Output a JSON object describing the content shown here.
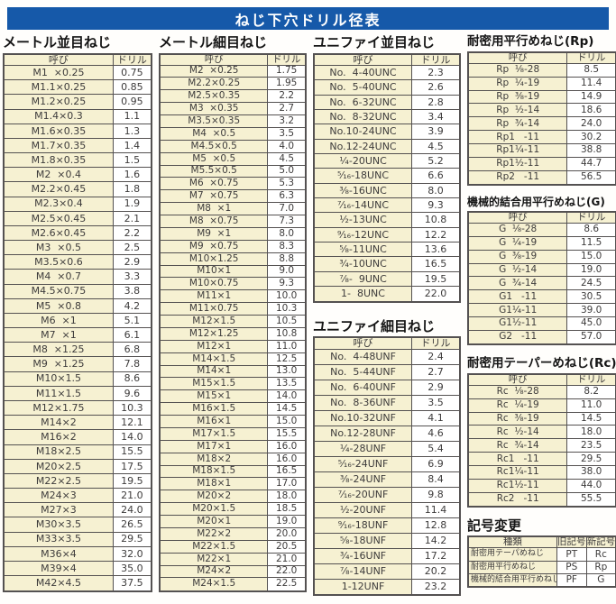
{
  "title": "ねじ下穴ドリル径表",
  "col_headers": {
    "name": "呼び",
    "drill": "ドリル"
  },
  "colors": {
    "title_bar": "#1659a9",
    "cell_cream": "#f6f1d2",
    "border": "#545151"
  },
  "tables": {
    "metric_coarse": {
      "heading": "メートル並目ねじ",
      "rows": [
        [
          "M1  ×0.25",
          "0.75"
        ],
        [
          "M1.1×0.25",
          "0.85"
        ],
        [
          "M1.2×0.25",
          "0.95"
        ],
        [
          "M1.4×0.3",
          "1.1"
        ],
        [
          "M1.6×0.35",
          "1.3"
        ],
        [
          "M1.7×0.35",
          "1.4"
        ],
        [
          "M1.8×0.35",
          "1.5"
        ],
        [
          "M2  ×0.4",
          "1.6"
        ],
        [
          "M2.2×0.45",
          "1.8"
        ],
        [
          "M2.3×0.4",
          "1.9"
        ],
        [
          "M2.5×0.45",
          "2.1"
        ],
        [
          "M2.6×0.45",
          "2.2"
        ],
        [
          "M3  ×0.5",
          "2.5"
        ],
        [
          "M3.5×0.6",
          "2.9"
        ],
        [
          "M4  ×0.7",
          "3.3"
        ],
        [
          "M4.5×0.75",
          "3.8"
        ],
        [
          "M5  ×0.8",
          "4.2"
        ],
        [
          "M6  ×1",
          "5.1"
        ],
        [
          "M7  ×1",
          "6.1"
        ],
        [
          "M8  ×1.25",
          "6.8"
        ],
        [
          "M9  ×1.25",
          "7.8"
        ],
        [
          "M10×1.5",
          "8.6"
        ],
        [
          "M11×1.5",
          "9.6"
        ],
        [
          "M12×1.75",
          "10.3"
        ],
        [
          "M14×2",
          "12.1"
        ],
        [
          "M16×2",
          "14.0"
        ],
        [
          "M18×2.5",
          "15.5"
        ],
        [
          "M20×2.5",
          "17.5"
        ],
        [
          "M22×2.5",
          "19.5"
        ],
        [
          "M24×3",
          "21.0"
        ],
        [
          "M27×3",
          "24.0"
        ],
        [
          "M30×3.5",
          "26.5"
        ],
        [
          "M33×3.5",
          "29.5"
        ],
        [
          "M36×4",
          "32.0"
        ],
        [
          "M39×4",
          "35.0"
        ],
        [
          "M42×4.5",
          "37.5"
        ]
      ]
    },
    "metric_fine": {
      "heading": "メートル細目ねじ",
      "rows": [
        [
          "M2  ×0.25",
          "1.75"
        ],
        [
          "M2.2×0.25",
          "1.95"
        ],
        [
          "M2.5×0.35",
          "2.2"
        ],
        [
          "M3  ×0.35",
          "2.7"
        ],
        [
          "M3.5×0.35",
          "3.2"
        ],
        [
          "M4  ×0.5",
          "3.5"
        ],
        [
          "M4.5×0.5",
          "4.0"
        ],
        [
          "M5  ×0.5",
          "4.5"
        ],
        [
          "M5.5×0.5",
          "5.0"
        ],
        [
          "M6  ×0.75",
          "5.3"
        ],
        [
          "M7  ×0.75",
          "6.3"
        ],
        [
          "M8  ×1",
          "7.0"
        ],
        [
          "M8  ×0.75",
          "7.3"
        ],
        [
          "M9  ×1",
          "8.0"
        ],
        [
          "M9  ×0.75",
          "8.3"
        ],
        [
          "M10×1.25",
          "8.8"
        ],
        [
          "M10×1",
          "9.0"
        ],
        [
          "M10×0.75",
          "9.3"
        ],
        [
          "M11×1",
          "10.0"
        ],
        [
          "M11×0.75",
          "10.3"
        ],
        [
          "M12×1.5",
          "10.5"
        ],
        [
          "M12×1.25",
          "10.8"
        ],
        [
          "M12×1",
          "11.0"
        ],
        [
          "M14×1.5",
          "12.5"
        ],
        [
          "M14×1",
          "13.0"
        ],
        [
          "M15×1.5",
          "13.5"
        ],
        [
          "M15×1",
          "14.0"
        ],
        [
          "M16×1.5",
          "14.5"
        ],
        [
          "M16×1",
          "15.0"
        ],
        [
          "M17×1.5",
          "15.5"
        ],
        [
          "M17×1",
          "16.0"
        ],
        [
          "M18×2",
          "16.0"
        ],
        [
          "M18×1.5",
          "16.5"
        ],
        [
          "M18×1",
          "17.0"
        ],
        [
          "M20×2",
          "18.0"
        ],
        [
          "M20×1.5",
          "18.5"
        ],
        [
          "M20×1",
          "19.0"
        ],
        [
          "M22×2",
          "20.0"
        ],
        [
          "M22×1.5",
          "20.5"
        ],
        [
          "M22×1",
          "21.0"
        ],
        [
          "M24×2",
          "22.0"
        ],
        [
          "M24×1.5",
          "22.5"
        ]
      ]
    },
    "unified_coarse": {
      "heading": "ユニファイ並目ねじ",
      "rows": [
        [
          "No.  4-40UNC",
          "2.3"
        ],
        [
          "No.  5-40UNC",
          "2.6"
        ],
        [
          "No.  6-32UNC",
          "2.8"
        ],
        [
          "No.  8-32UNC",
          "3.4"
        ],
        [
          "No.10-24UNC",
          "3.9"
        ],
        [
          "No.12-24UNC",
          "4.5"
        ],
        [
          "¹⁄₄-20UNC",
          "5.2"
        ],
        [
          "⁵⁄₁₆-18UNC",
          "6.6"
        ],
        [
          "³⁄₈-16UNC",
          "8.0"
        ],
        [
          "⁷⁄₁₆-14UNC",
          "9.3"
        ],
        [
          "¹⁄₂-13UNC",
          "10.8"
        ],
        [
          "⁹⁄₁₆-12UNC",
          "12.2"
        ],
        [
          "⁵⁄₈-11UNC",
          "13.6"
        ],
        [
          "³⁄₄-10UNC",
          "16.5"
        ],
        [
          "⁷⁄₈-  9UNC",
          "19.5"
        ],
        [
          "1-  8UNC",
          "22.0"
        ]
      ]
    },
    "unified_fine": {
      "heading": "ユニファイ細目ねじ",
      "rows": [
        [
          "No.  4-48UNF",
          "2.4"
        ],
        [
          "No.  5-44UNF",
          "2.7"
        ],
        [
          "No.  6-40UNF",
          "2.9"
        ],
        [
          "No.  8-36UNF",
          "3.5"
        ],
        [
          "No.10-32UNF",
          "4.1"
        ],
        [
          "No.12-28UNF",
          "4.6"
        ],
        [
          "¹⁄₄-28UNF",
          "5.4"
        ],
        [
          "⁵⁄₁₆-24UNF",
          "6.9"
        ],
        [
          "³⁄₈-24UNF",
          "8.4"
        ],
        [
          "⁷⁄₁₆-20UNF",
          "9.8"
        ],
        [
          "¹⁄₂-20UNF",
          "11.4"
        ],
        [
          "⁹⁄₁₆-18UNF",
          "12.8"
        ],
        [
          "⁵⁄₈-18UNF",
          "14.2"
        ],
        [
          "³⁄₄-16UNF",
          "17.2"
        ],
        [
          "⁷⁄₈-14UNF",
          "20.2"
        ],
        [
          "1-12UNF",
          "23.2"
        ]
      ]
    },
    "rp": {
      "heading": "耐密用平行めねじ(Rp)",
      "rows": [
        [
          "Rp  ¹⁄₈-28",
          "8.5"
        ],
        [
          "Rp  ¹⁄₄-19",
          "11.4"
        ],
        [
          "Rp  ³⁄₈-19",
          "14.9"
        ],
        [
          "Rp  ¹⁄₂-14",
          "18.6"
        ],
        [
          "Rp  ³⁄₄-14",
          "24.0"
        ],
        [
          "Rp1   -11",
          "30.2"
        ],
        [
          "Rp1¹⁄₄-11",
          "38.8"
        ],
        [
          "Rp1¹⁄₂-11",
          "44.7"
        ],
        [
          "Rp2   -11",
          "56.5"
        ]
      ]
    },
    "g": {
      "heading": "機械的結合用平行めねじ(G)",
      "rows": [
        [
          "G  ¹⁄₈-28",
          "8.6"
        ],
        [
          "G  ¹⁄₄-19",
          "11.5"
        ],
        [
          "G  ³⁄₈-19",
          "15.0"
        ],
        [
          "G  ¹⁄₂-14",
          "19.0"
        ],
        [
          "G  ³⁄₄-14",
          "24.5"
        ],
        [
          "G1   -11",
          "30.5"
        ],
        [
          "G1¹⁄₄-11",
          "39.0"
        ],
        [
          "G1¹⁄₂-11",
          "45.0"
        ],
        [
          "G2   -11",
          "57.0"
        ]
      ]
    },
    "rc": {
      "heading": "耐密用テーパーめねじ(Rc)",
      "rows": [
        [
          "Rc  ¹⁄₈-28",
          "8.2"
        ],
        [
          "Rc  ¹⁄₄-19",
          "11.0"
        ],
        [
          "Rc  ³⁄₈-19",
          "14.5"
        ],
        [
          "Rc  ¹⁄₂-14",
          "18.0"
        ],
        [
          "Rc  ³⁄₄-14",
          "23.5"
        ],
        [
          "Rc1   -11",
          "29.5"
        ],
        [
          "Rc1¹⁄₄-11",
          "38.0"
        ],
        [
          "Rc1¹⁄₂-11",
          "44.0"
        ],
        [
          "Rc2   -11",
          "55.5"
        ]
      ]
    },
    "symbol_change": {
      "heading": "記号変更",
      "headers": [
        "種類",
        "旧記号",
        "新記号"
      ],
      "rows": [
        [
          "耐密用テーパめねじ",
          "PT",
          "Rc"
        ],
        [
          "耐密用平行めねじ",
          "PS",
          "Rp"
        ],
        [
          "機械的結合用平行めねじ",
          "PF",
          "G"
        ]
      ]
    }
  }
}
